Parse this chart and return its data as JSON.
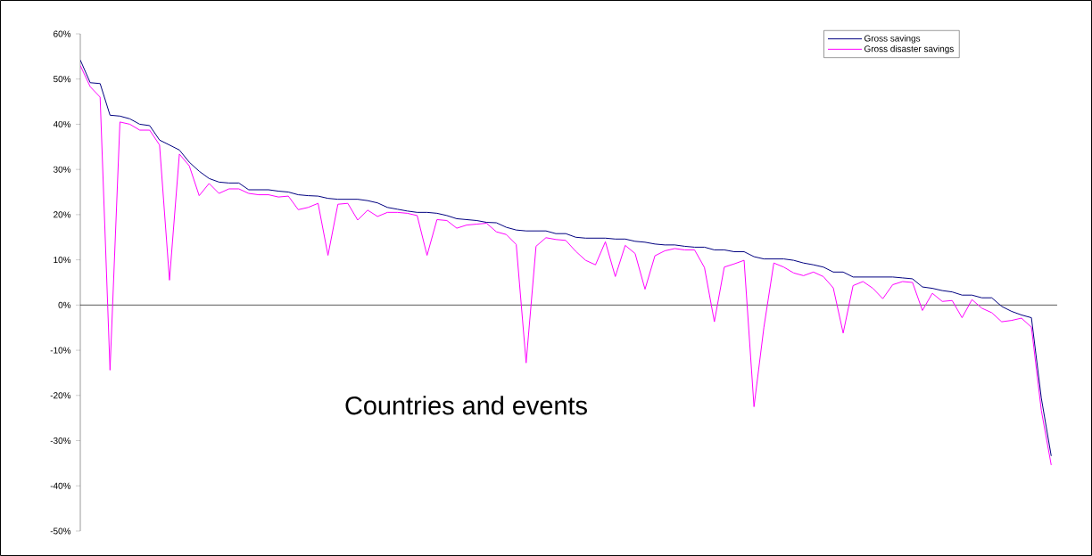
{
  "chart_data": {
    "type": "line",
    "xlabel": "Countries and events",
    "categories": [
      null,
      null,
      null,
      null,
      null,
      null,
      null,
      null,
      null,
      null,
      null,
      null,
      null,
      null,
      null,
      null,
      null,
      null,
      null,
      null,
      null,
      null,
      null,
      null,
      null,
      null,
      null,
      null,
      null,
      null,
      null,
      null,
      null,
      null,
      null,
      null,
      null,
      null,
      null,
      null,
      null,
      null,
      null,
      null,
      null,
      null,
      null,
      null,
      null,
      null,
      null,
      null,
      null,
      null,
      null,
      null,
      null,
      null,
      null,
      null,
      null,
      null,
      null,
      null,
      null,
      null,
      null,
      null,
      null,
      null,
      null,
      null,
      null,
      null,
      null,
      null,
      null,
      null,
      null,
      null,
      null,
      null,
      null,
      null,
      null,
      null,
      null,
      null,
      null,
      null,
      null,
      null,
      null,
      null,
      null,
      null,
      null,
      null,
      null
    ],
    "series": [
      {
        "name": "Gross savings",
        "color": "#000080",
        "values": [
          54.2,
          49.2,
          49.0,
          42.0,
          41.8,
          41.2,
          40.0,
          39.7,
          36.5,
          35.4,
          34.3,
          31.6,
          29.6,
          28.0,
          27.2,
          27.0,
          27.0,
          25.5,
          25.5,
          25.5,
          25.2,
          25.0,
          24.4,
          24.2,
          24.1,
          23.6,
          23.4,
          23.4,
          23.4,
          23.1,
          22.6,
          21.6,
          21.2,
          20.8,
          20.5,
          20.5,
          20.3,
          19.8,
          19.1,
          18.9,
          18.7,
          18.3,
          18.2,
          17.2,
          16.6,
          16.4,
          16.4,
          16.4,
          15.8,
          15.8,
          15.0,
          14.8,
          14.8,
          14.8,
          14.6,
          14.6,
          14.1,
          13.9,
          13.5,
          13.3,
          13.3,
          13.0,
          12.8,
          12.8,
          12.2,
          12.2,
          11.8,
          11.8,
          10.7,
          10.2,
          10.2,
          10.2,
          9.9,
          9.3,
          8.9,
          8.4,
          7.3,
          7.3,
          6.2,
          6.2,
          6.2,
          6.2,
          6.2,
          6.0,
          5.8,
          4.0,
          3.7,
          3.2,
          2.9,
          2.2,
          2.2,
          1.6,
          1.6,
          -0.3,
          -1.4,
          -2.2,
          -2.8,
          -20.6,
          -33.4
        ]
      },
      {
        "name": "Gross disaster savings",
        "color": "#ff00ff",
        "values": [
          53.0,
          48.3,
          46.0,
          -14.4,
          40.5,
          40.0,
          38.7,
          38.7,
          35.4,
          5.5,
          33.4,
          30.8,
          24.2,
          26.9,
          24.7,
          25.7,
          25.7,
          24.7,
          24.4,
          24.4,
          23.9,
          24.1,
          21.1,
          21.6,
          22.5,
          11.0,
          22.3,
          22.5,
          18.8,
          21.0,
          19.6,
          20.5,
          20.5,
          20.3,
          19.8,
          11.0,
          18.9,
          18.7,
          17.0,
          17.7,
          17.9,
          18.1,
          16.2,
          15.6,
          13.4,
          -12.8,
          13.0,
          14.9,
          14.5,
          14.3,
          11.9,
          9.9,
          8.9,
          14.0,
          6.3,
          13.2,
          11.4,
          3.5,
          10.9,
          12.0,
          12.5,
          12.2,
          12.2,
          8.3,
          -3.7,
          8.4,
          9.1,
          9.9,
          -22.5,
          -4.9,
          9.3,
          8.4,
          7.1,
          6.5,
          7.3,
          6.3,
          3.8,
          -6.2,
          4.3,
          5.2,
          3.7,
          1.4,
          4.5,
          5.2,
          5.0,
          -1.2,
          2.6,
          0.8,
          1.0,
          -2.8,
          1.2,
          -0.7,
          -1.7,
          -3.7,
          -3.4,
          -2.9,
          -4.9,
          -23.3,
          -35.4
        ]
      }
    ],
    "ylim": [
      -50,
      60
    ],
    "yticks": [
      {
        "value": -50,
        "label": "-50%"
      },
      {
        "value": -40,
        "label": "-40%"
      },
      {
        "value": -30,
        "label": "-30%"
      },
      {
        "value": -20,
        "label": "-20%"
      },
      {
        "value": -10,
        "label": "-10%"
      },
      {
        "value": 0,
        "label": "0%"
      },
      {
        "value": 10,
        "label": "10%"
      },
      {
        "value": 20,
        "label": "20%"
      },
      {
        "value": 30,
        "label": "30%"
      },
      {
        "value": 40,
        "label": "40%"
      },
      {
        "value": 50,
        "label": "50%"
      },
      {
        "value": 60,
        "label": "60%"
      }
    ],
    "legend": "top right",
    "marker": "none",
    "line_style": "solid"
  }
}
